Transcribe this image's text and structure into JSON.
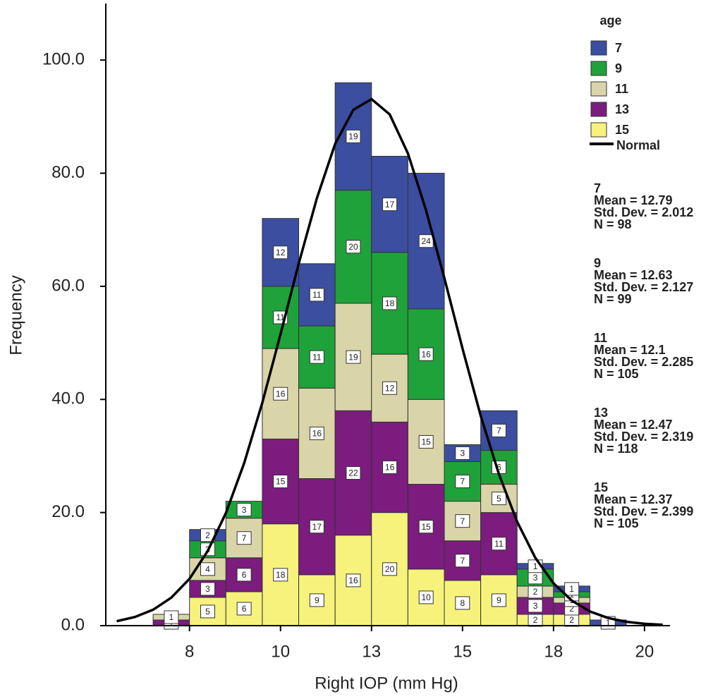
{
  "chart_data": {
    "type": "histogram",
    "x_label": "Right IOP (mm Hg)",
    "y_label": "Frequency",
    "legend_title": "age",
    "bins": [
      6.5,
      7.5,
      8.5,
      9.5,
      10.5,
      11.5,
      12.5,
      13.5,
      14.5,
      15.5,
      16.5,
      17.5,
      18.5,
      19.5
    ],
    "series": [
      {
        "name": "7",
        "color": "#3b4e9f",
        "values": [
          0,
          2,
          0,
          12,
          11,
          19,
          17,
          24,
          3,
          7,
          1,
          1,
          1
        ],
        "stats": [
          "Mean = 12.79",
          "Std. Dev. = 2.012",
          "N = 98"
        ]
      },
      {
        "name": "9",
        "color": "#1fa23a",
        "values": [
          0,
          3,
          3,
          11,
          11,
          20,
          18,
          16,
          7,
          6,
          3,
          1,
          0
        ],
        "stats": [
          "Mean = 12.63",
          "Std. Dev. = 2.127",
          "N = 99"
        ]
      },
      {
        "name": "11",
        "color": "#d9d5a8",
        "values": [
          1,
          4,
          7,
          16,
          16,
          19,
          12,
          15,
          7,
          5,
          2,
          1,
          0
        ],
        "stats": [
          "Mean = 12.1",
          "Std. Dev. = 2.285",
          "N = 105"
        ]
      },
      {
        "name": "13",
        "color": "#7b1c7e",
        "values": [
          1,
          3,
          6,
          15,
          17,
          22,
          16,
          15,
          7,
          11,
          3,
          2,
          0
        ],
        "stats": [
          "Mean = 12.47",
          "Std. Dev. = 2.319",
          "N = 118"
        ]
      },
      {
        "name": "15",
        "color": "#f6f27c",
        "values": [
          0,
          5,
          6,
          18,
          9,
          16,
          20,
          10,
          8,
          9,
          2,
          2,
          0
        ],
        "stats": [
          "Mean = 12.37",
          "Std. Dev. = 2.399",
          "N = 105"
        ]
      }
    ],
    "curve": {
      "name": "Normal",
      "color": "#000000",
      "x": [
        5.5,
        6,
        6.5,
        7,
        7.5,
        8,
        8.5,
        9,
        9.5,
        10,
        10.5,
        11,
        11.5,
        12,
        12.5,
        13,
        13.5,
        14,
        14.5,
        15,
        15.5,
        16,
        16.5,
        17,
        17.5,
        18,
        18.5,
        19,
        19.5,
        20,
        20.5
      ],
      "y": [
        0.79,
        1.53,
        2.82,
        4.95,
        8.28,
        13.2,
        19.9,
        28.7,
        39.4,
        51.5,
        64.0,
        75.6,
        85.2,
        91.2,
        93.1,
        90.4,
        83.5,
        73.4,
        61.5,
        49.0,
        37.1,
        26.8,
        18.4,
        12.0,
        7.5,
        4.44,
        2.51,
        1.35,
        0.69,
        0.33,
        0.15
      ]
    },
    "xlim": [
      5.2,
      20.7
    ],
    "xticks": [
      {
        "value": 7.5,
        "label": "8"
      },
      10,
      {
        "value": 12.5,
        "label": "13"
      },
      15,
      {
        "value": 17.5,
        "label": "18"
      },
      20
    ],
    "ylim": [
      0,
      110
    ],
    "yticks": [
      {
        "value": 0,
        "label": "0.0"
      },
      {
        "value": 20,
        "label": "20.0"
      },
      {
        "value": 40,
        "label": "40.0"
      },
      {
        "value": 60,
        "label": "60.0"
      },
      {
        "value": 80,
        "label": "80.0"
      },
      {
        "value": 100,
        "label": "100.0"
      }
    ]
  }
}
